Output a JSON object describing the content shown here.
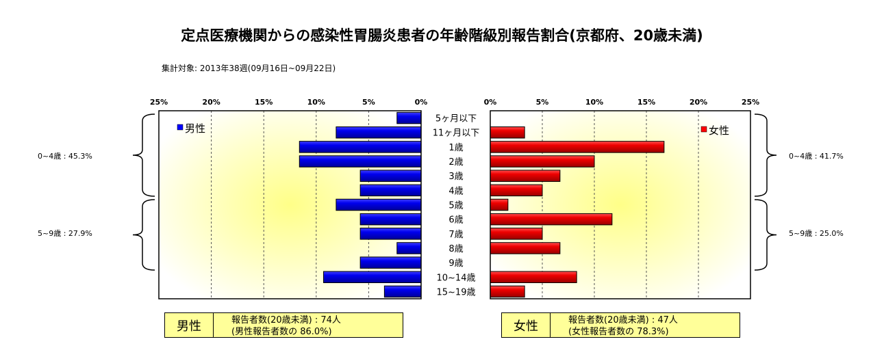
{
  "title": "定点医療機関からの感染性胃腸炎患者の年齢階級別報告割合(京都府、20歳未満)",
  "subtitle": "集計対象: 2013年38週(09月16日~09月22日)",
  "colors": {
    "male": "#0000ff",
    "female": "#ff0000"
  },
  "chart_data": [
    {
      "type": "bar",
      "orientation": "horizontal",
      "direction": "right-to-left",
      "categories": [
        "5ヶ月以下",
        "11ヶ月以下",
        "1歳",
        "2歳",
        "3歳",
        "4歳",
        "5歳",
        "6歳",
        "7歳",
        "8歳",
        "9歳",
        "10~14歳",
        "15~19歳"
      ],
      "series": [
        {
          "name": "男性",
          "values": [
            2.3,
            8.1,
            11.6,
            11.6,
            5.8,
            5.8,
            8.1,
            5.8,
            5.8,
            2.3,
            5.8,
            9.3,
            3.5
          ]
        }
      ],
      "xlim": [
        0,
        25
      ],
      "ticks": [
        "25%",
        "20%",
        "15%",
        "10%",
        "5%",
        "0%"
      ],
      "legend": "top-left",
      "grid": true
    },
    {
      "type": "bar",
      "orientation": "horizontal",
      "direction": "left-to-right",
      "categories": [
        "5ヶ月以下",
        "11ヶ月以下",
        "1歳",
        "2歳",
        "3歳",
        "4歳",
        "5歳",
        "6歳",
        "7歳",
        "8歳",
        "9歳",
        "10~14歳",
        "15~19歳"
      ],
      "series": [
        {
          "name": "女性",
          "values": [
            0,
            3.3,
            16.7,
            10.0,
            6.7,
            5.0,
            1.7,
            11.7,
            5.0,
            6.7,
            0,
            8.3,
            3.3
          ]
        }
      ],
      "xlim": [
        0,
        25
      ],
      "ticks": [
        "0%",
        "5%",
        "10%",
        "15%",
        "20%",
        "25%"
      ],
      "legend": "top-right",
      "grid": true
    }
  ],
  "brackets": {
    "left": [
      "0~4歳 : 45.3%",
      "5~9歳 : 27.9%"
    ],
    "right": [
      "0~4歳 : 41.7%",
      "5~9歳 : 25.0%"
    ]
  },
  "male_box": {
    "label": "男性",
    "line1": "報告者数(20歳未満) : 74人",
    "line2": "(男性報告者数の 86.0%)"
  },
  "female_box": {
    "label": "女性",
    "line1": "報告者数(20歳未満) : 47人",
    "line2": "(女性報告者数の 78.3%)"
  }
}
